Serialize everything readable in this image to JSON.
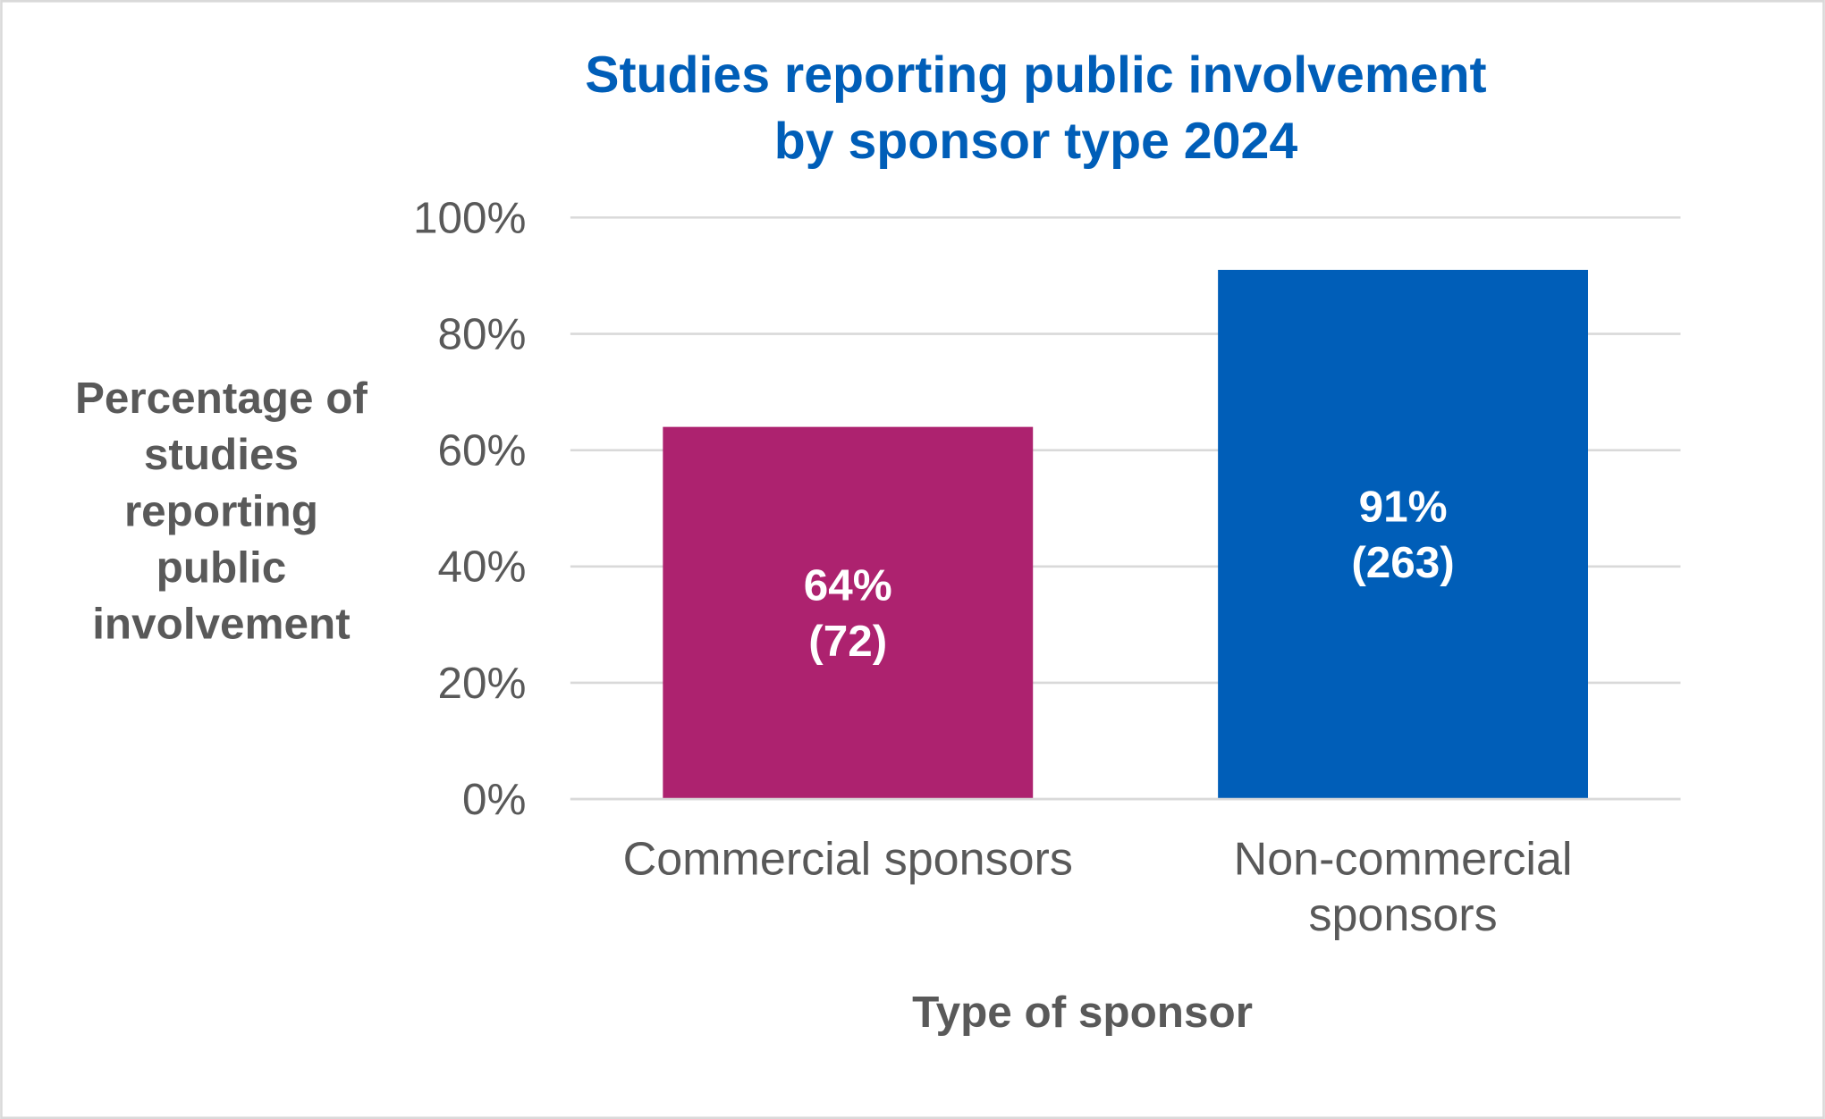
{
  "chart_data": {
    "type": "bar",
    "title": [
      "Studies reporting public involvement",
      "by sponsor type 2024"
    ],
    "xlabel": "Type of sponsor",
    "ylabel": [
      "Percentage of",
      "studies",
      "reporting",
      "public",
      "involvement"
    ],
    "categories": [
      [
        "Commercial sponsors"
      ],
      [
        "Non-commercial",
        "sponsors"
      ]
    ],
    "values": [
      64,
      91
    ],
    "data_labels": [
      [
        "64%",
        "(72)"
      ],
      [
        "91%",
        "(263)"
      ]
    ],
    "bar_colors": [
      "#AD226F",
      "#005EB8"
    ],
    "ylim": [
      0,
      100
    ],
    "yticks": [
      "0%",
      "20%",
      "40%",
      "60%",
      "80%",
      "100%"
    ],
    "grid": true,
    "legend": "none"
  }
}
